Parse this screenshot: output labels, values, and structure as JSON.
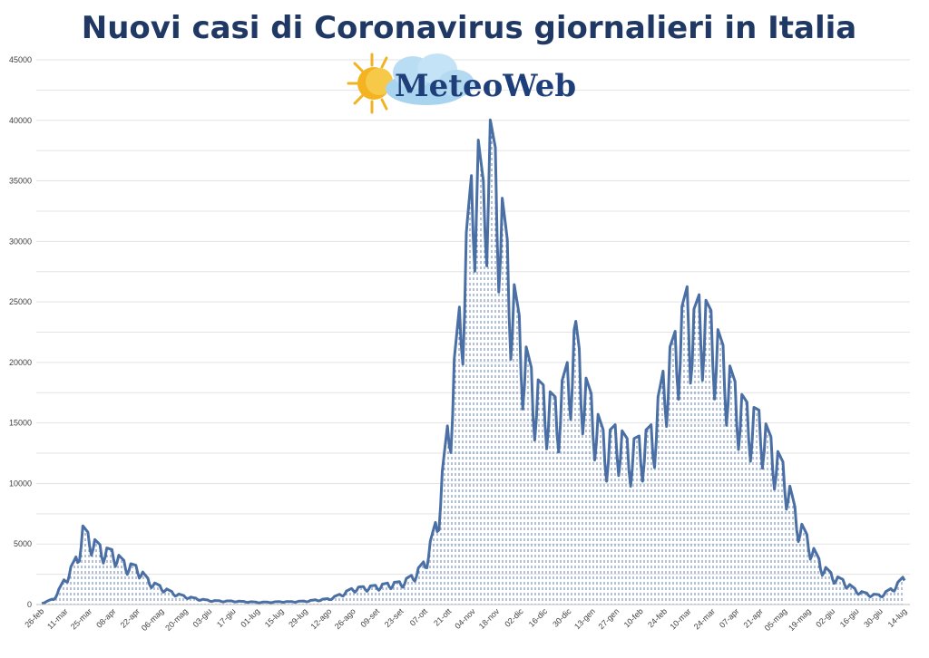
{
  "chart_data": {
    "type": "area",
    "title": "Nuovi casi di Coronavirus giornalieri in Italia",
    "xlabel": "",
    "ylabel": "",
    "ylim": [
      0,
      45000
    ],
    "yticks": [
      0,
      5000,
      10000,
      15000,
      20000,
      25000,
      30000,
      35000,
      40000,
      45000
    ],
    "grid": true,
    "legend": "none",
    "colors": {
      "line": "#4a6fa5",
      "fill": "#6d8ec0",
      "title": "#1f3864"
    },
    "x_tick_labels": [
      "26-feb",
      "11-mar",
      "25-mar",
      "08-apr",
      "22-apr",
      "06-mag",
      "20-mag",
      "03-giu",
      "17-giu",
      "01-lug",
      "15-lug",
      "29-lug",
      "12-ago",
      "26-ago",
      "09-set",
      "23-set",
      "07-ott",
      "21-ott",
      "04-nov",
      "18-nov",
      "02-dic",
      "16-dic",
      "30-dic",
      "13-gen",
      "27-gen",
      "10-feb",
      "24-feb",
      "10-mar",
      "24-mar",
      "07-apr",
      "21-apr",
      "05-mag",
      "19-mag",
      "02-giu",
      "16-giu",
      "30-giu",
      "14-lug"
    ],
    "series": [
      {
        "x": [
          "26-feb",
          "04-mar",
          "11-mar",
          "18-mar",
          "21-mar",
          "25-mar",
          "01-apr",
          "08-apr",
          "15-apr",
          "22-apr",
          "29-apr",
          "06-mag",
          "13-mag",
          "20-mag",
          "27-mag",
          "03-giu",
          "10-giu",
          "17-giu",
          "24-giu",
          "01-lug",
          "08-lug",
          "15-lug",
          "22-lug",
          "29-lug",
          "05-ago",
          "12-ago",
          "19-ago",
          "26-ago",
          "02-set",
          "09-set",
          "16-set",
          "23-set",
          "30-set",
          "07-ott",
          "14-ott",
          "21-ott",
          "28-ott",
          "04-nov",
          "06-nov",
          "10-nov",
          "13-nov",
          "18-nov",
          "25-nov",
          "02-dic",
          "09-dic",
          "16-dic",
          "23-dic",
          "30-dic",
          "03-gen",
          "06-gen",
          "13-gen",
          "20-gen",
          "27-gen",
          "03-feb",
          "10-feb",
          "17-feb",
          "24-feb",
          "03-mar",
          "10-mar",
          "12-mar",
          "17-mar",
          "24-mar",
          "31-mar",
          "07-apr",
          "14-apr",
          "21-apr",
          "28-apr",
          "05-mag",
          "12-mag",
          "19-mag",
          "26-mag",
          "02-giu",
          "09-giu",
          "16-giu",
          "23-giu",
          "30-giu",
          "07-lug",
          "14-lug"
        ],
        "values": [
          100,
          500,
          2300,
          4200,
          6500,
          5800,
          4800,
          4500,
          3500,
          3200,
          2000,
          1500,
          1000,
          700,
          500,
          350,
          300,
          300,
          250,
          200,
          200,
          250,
          250,
          300,
          400,
          500,
          900,
          1400,
          1500,
          1600,
          1800,
          1900,
          2500,
          3700,
          7300,
          16000,
          26000,
          37000,
          39500,
          35000,
          40800,
          37000,
          29000,
          23000,
          19000,
          18000,
          17000,
          20500,
          23400,
          20000,
          17000,
          14000,
          15000,
          13500,
          14000,
          15000,
          20000,
          23000,
          26800,
          24000,
          26000,
          24000,
          21000,
          18000,
          16500,
          16000,
          13500,
          11500,
          7500,
          5500,
          3500,
          2500,
          2000,
          1200,
          900,
          800,
          1400,
          2400
        ]
      }
    ]
  },
  "logo": {
    "text": "MeteoWeb"
  }
}
